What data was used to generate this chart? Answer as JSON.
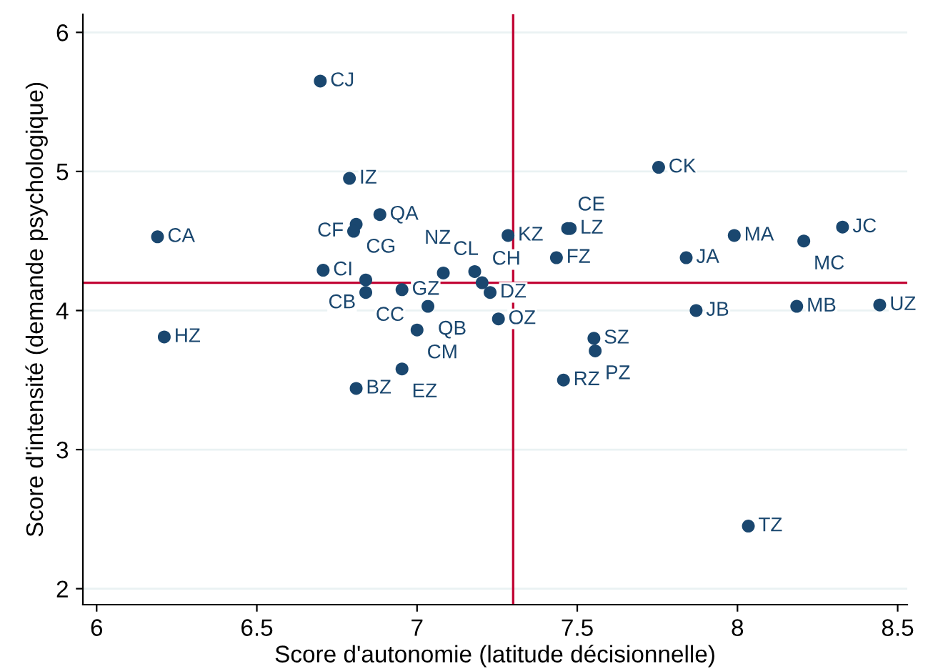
{
  "chart_data": {
    "type": "scatter",
    "xlabel": "Score d'autonomie (latitude décisionnelle)",
    "ylabel": "Score d'intensité (demande psychologique)",
    "x": [
      6.698,
      6.789,
      6.884,
      6.81,
      6.802,
      6.19,
      6.707,
      6.84,
      6.84,
      6.953,
      7.082,
      7.18,
      7.203,
      7.228,
      7.034,
      7.0,
      6.953,
      6.81,
      6.211,
      7.284,
      7.47,
      7.478,
      7.435,
      7.754,
      7.99,
      7.84,
      8.207,
      8.328,
      7.871,
      8.185,
      8.444,
      7.254,
      7.552,
      7.556,
      7.457,
      8.034
    ],
    "values": [
      5.65,
      4.95,
      4.69,
      4.62,
      4.57,
      4.53,
      4.29,
      4.22,
      4.13,
      4.15,
      4.27,
      4.28,
      4.2,
      4.13,
      4.03,
      3.86,
      3.58,
      3.44,
      3.81,
      4.54,
      4.59,
      4.59,
      4.38,
      5.03,
      4.54,
      4.38,
      4.5,
      4.6,
      4.0,
      4.03,
      4.04,
      3.94,
      3.8,
      3.71,
      3.5,
      2.45
    ],
    "value_labels": [
      "CJ",
      "IZ",
      "QA",
      "CG",
      "CF",
      "CA",
      "CI",
      "CB",
      "CC",
      "GZ",
      "CL",
      "NZ",
      "CH",
      "DZ",
      "QB",
      "CM",
      "EZ",
      "BZ",
      "HZ",
      "KZ",
      "CE",
      "LZ",
      "FZ",
      "CK",
      "MA",
      "JA",
      "MC",
      "JC",
      "JB",
      "MB",
      "UZ",
      "OZ",
      "SZ",
      "PZ",
      "RZ",
      "TZ"
    ],
    "color": "#1a476f",
    "marker": "circle",
    "xlim": [
      5.957,
      8.53
    ],
    "xticks": [
      6,
      6.5,
      7,
      7.5,
      8,
      8.5
    ],
    "ylim": [
      1.885,
      6.13
    ],
    "yticks": [
      2,
      3,
      4,
      5,
      6
    ],
    "grid": "y",
    "ref_lines": [
      {
        "axis": "x",
        "value": 7.3,
        "color": "#c10534"
      },
      {
        "axis": "y",
        "value": 4.2,
        "color": "#c10534"
      }
    ]
  }
}
